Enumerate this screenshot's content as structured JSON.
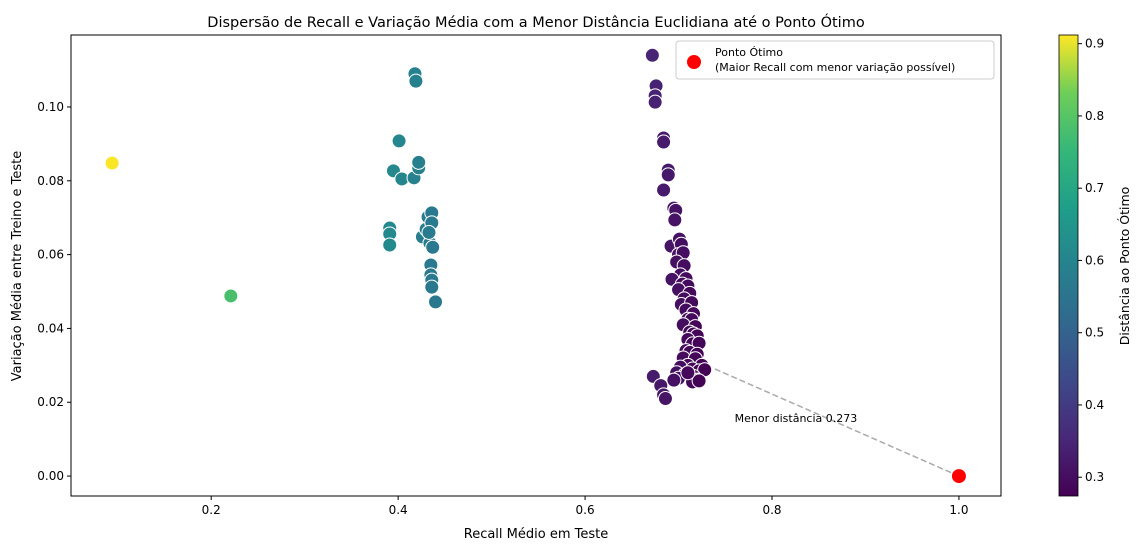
{
  "chart_data": {
    "type": "scatter",
    "title": "Dispersão de Recall e Variação Média com a Menor Distância Euclidiana até o Ponto Ótimo",
    "xlabel": "Recall Médio em Teste",
    "ylabel": "Variação Média entre Treino e Teste",
    "xlim": [
      0.05,
      1.045
    ],
    "ylim": [
      -0.0054,
      0.1195
    ],
    "xticks": [
      0.2,
      0.4,
      0.6,
      0.8,
      1.0
    ],
    "xtick_labels": [
      "0.2",
      "0.4",
      "0.6",
      "0.8",
      "1.0"
    ],
    "yticks": [
      0.0,
      0.02,
      0.04,
      0.06,
      0.08,
      0.1
    ],
    "ytick_labels": [
      "0.00",
      "0.02",
      "0.04",
      "0.06",
      "0.08",
      "0.10"
    ],
    "grid": false,
    "colormap": "viridis",
    "colorbar": {
      "label": "Distância ao Ponto Ótimo",
      "range": [
        0.274,
        0.912
      ],
      "ticks": [
        0.3,
        0.4,
        0.5,
        0.6,
        0.7,
        0.8,
        0.9
      ],
      "tick_labels": [
        "0.3",
        "0.4",
        "0.5",
        "0.6",
        "0.7",
        "0.8",
        "0.9"
      ]
    },
    "points": [
      [
        0.094,
        0.0848
      ],
      [
        0.221,
        0.0488
      ],
      [
        0.418,
        0.109
      ],
      [
        0.419,
        0.107
      ],
      [
        0.401,
        0.0908
      ],
      [
        0.395,
        0.0827
      ],
      [
        0.404,
        0.0805
      ],
      [
        0.417,
        0.0808
      ],
      [
        0.422,
        0.0835
      ],
      [
        0.422,
        0.085
      ],
      [
        0.391,
        0.0672
      ],
      [
        0.391,
        0.0656
      ],
      [
        0.391,
        0.0626
      ],
      [
        0.426,
        0.0648
      ],
      [
        0.43,
        0.0669
      ],
      [
        0.432,
        0.0702
      ],
      [
        0.436,
        0.0713
      ],
      [
        0.436,
        0.0686
      ],
      [
        0.434,
        0.0631
      ],
      [
        0.435,
        0.0572
      ],
      [
        0.435,
        0.0545
      ],
      [
        0.436,
        0.0531
      ],
      [
        0.436,
        0.0512
      ],
      [
        0.44,
        0.0472
      ],
      [
        0.433,
        0.066
      ],
      [
        0.437,
        0.062
      ],
      [
        0.672,
        0.114
      ],
      [
        0.676,
        0.1057
      ],
      [
        0.675,
        0.103
      ],
      [
        0.675,
        0.1013
      ],
      [
        0.684,
        0.0916
      ],
      [
        0.684,
        0.0905
      ],
      [
        0.684,
        0.0775
      ],
      [
        0.689,
        0.0829
      ],
      [
        0.689,
        0.0816
      ],
      [
        0.695,
        0.0726
      ],
      [
        0.697,
        0.072
      ],
      [
        0.696,
        0.0694
      ],
      [
        0.692,
        0.0623
      ],
      [
        0.701,
        0.0642
      ],
      [
        0.703,
        0.0628
      ],
      [
        0.7,
        0.06
      ],
      [
        0.705,
        0.0605
      ],
      [
        0.698,
        0.058
      ],
      [
        0.706,
        0.057
      ],
      [
        0.702,
        0.0545
      ],
      [
        0.708,
        0.0535
      ],
      [
        0.693,
        0.0533
      ],
      [
        0.704,
        0.052
      ],
      [
        0.71,
        0.0515
      ],
      [
        0.7,
        0.0505
      ],
      [
        0.712,
        0.0495
      ],
      [
        0.706,
        0.048
      ],
      [
        0.703,
        0.0465
      ],
      [
        0.714,
        0.047
      ],
      [
        0.708,
        0.045
      ],
      [
        0.716,
        0.044
      ],
      [
        0.71,
        0.0425
      ],
      [
        0.714,
        0.0424
      ],
      [
        0.705,
        0.041
      ],
      [
        0.718,
        0.0405
      ],
      [
        0.712,
        0.039
      ],
      [
        0.716,
        0.0385
      ],
      [
        0.72,
        0.038
      ],
      [
        0.71,
        0.037
      ],
      [
        0.715,
        0.0358
      ],
      [
        0.722,
        0.036
      ],
      [
        0.708,
        0.034
      ],
      [
        0.712,
        0.0335
      ],
      [
        0.72,
        0.033
      ],
      [
        0.705,
        0.032
      ],
      [
        0.718,
        0.0318
      ],
      [
        0.725,
        0.03
      ],
      [
        0.71,
        0.03
      ],
      [
        0.702,
        0.0295
      ],
      [
        0.715,
        0.029
      ],
      [
        0.722,
        0.0285
      ],
      [
        0.698,
        0.028
      ],
      [
        0.728,
        0.0288
      ],
      [
        0.707,
        0.0275
      ],
      [
        0.716,
        0.027
      ],
      [
        0.72,
        0.026
      ],
      [
        0.7,
        0.0265
      ],
      [
        0.715,
        0.0255
      ],
      [
        0.722,
        0.0258
      ],
      [
        0.673,
        0.027
      ],
      [
        0.681,
        0.0245
      ],
      [
        0.684,
        0.022
      ],
      [
        0.686,
        0.021
      ],
      [
        0.695,
        0.026
      ],
      [
        0.71,
        0.028
      ]
    ],
    "optimal_point": {
      "x": 1.0,
      "y": 0.0,
      "color": "#ff0000"
    },
    "nearest_point": {
      "x": 0.73,
      "y": 0.03
    },
    "annotation": {
      "text": "Menor distância 0.273",
      "x": 0.79,
      "y": 0.0157
    },
    "legend": {
      "placement": "top-right",
      "entries": [
        {
          "label": "Ponto Ótimo\n(Maior Recall com menor variação possível)",
          "line1": "Ponto Ótimo",
          "line2": "(Maior Recall com menor variação possível)",
          "color": "#ff0000"
        }
      ]
    }
  }
}
